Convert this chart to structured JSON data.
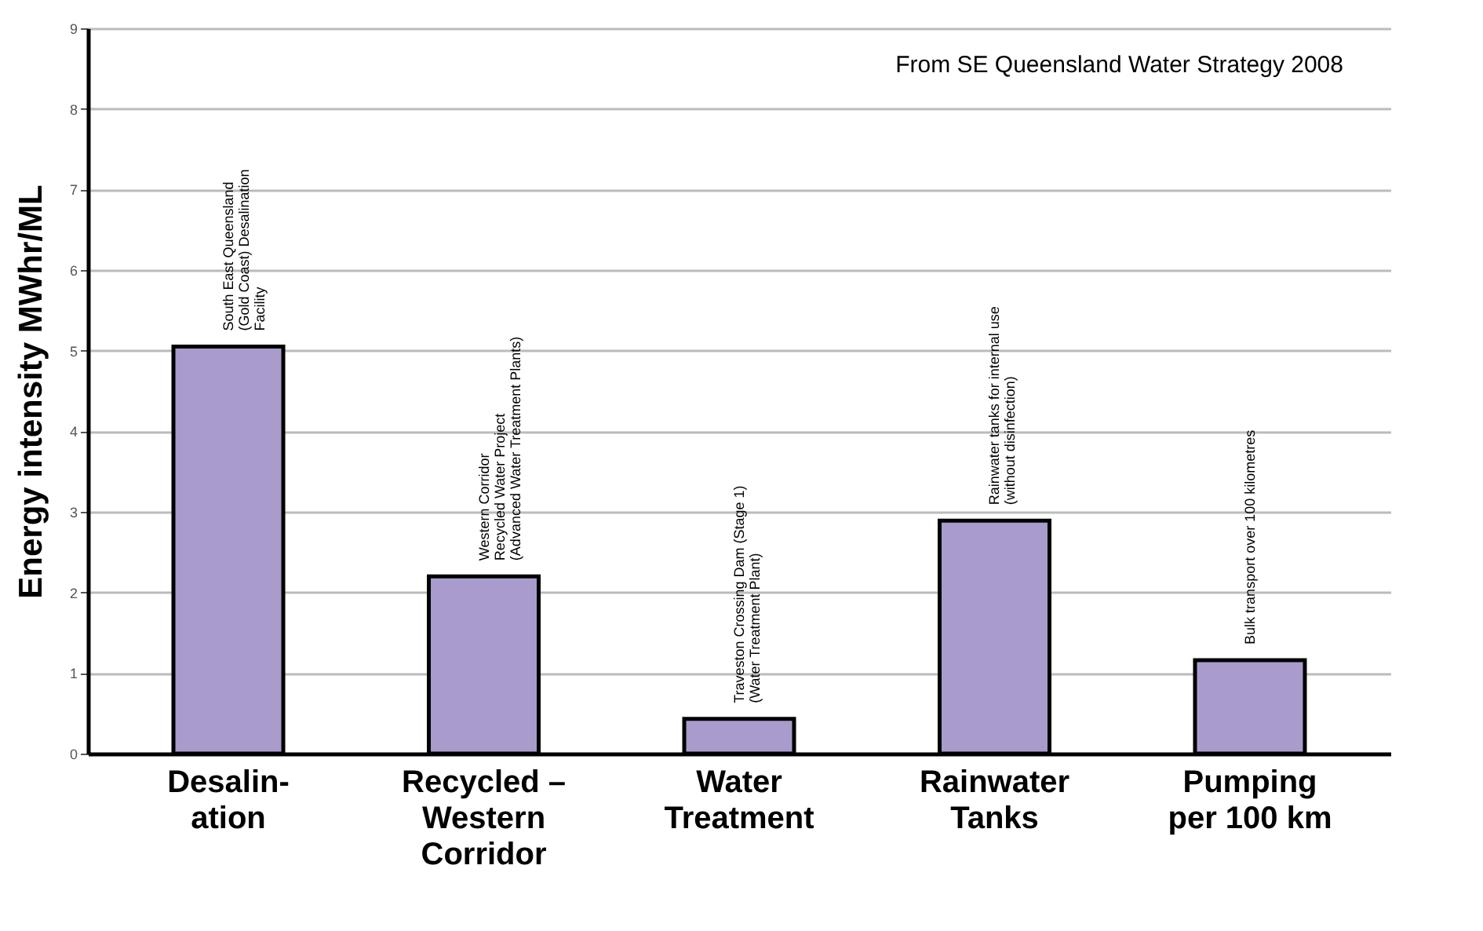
{
  "chart_data": {
    "type": "bar",
    "ylabel": "Energy intensity MWhr/ML",
    "categories": [
      "Desalin-\nation",
      "Recycled –\nWestern\nCorridor",
      "Water\nTreatment",
      "Rainwater\nTanks",
      "Pumping\nper 100 km"
    ],
    "values": [
      5.05,
      2.2,
      0.43,
      2.89,
      1.16
    ],
    "color": "#a99bcb",
    "ylim": [
      0,
      9
    ],
    "yticks": [
      0,
      1,
      2,
      3,
      4,
      5,
      6,
      7,
      8,
      9
    ],
    "grid": "y",
    "annotations": [
      "From SE Queensland Water Strategy 2008",
      {
        "text": "South East Queensland\n(Gold Coast) Desalination\nFacility",
        "x": "Desalin-\nation",
        "y": 5.05
      },
      {
        "text": "Western Corridor\nRecycled Water Project\n(Advanced Water Treatment Plants)",
        "x": "Recycled –\nWestern\nCorridor",
        "y": 2.2
      },
      {
        "text": "Traveston Crossing Dam (Stage 1)\n(Water Treatment Plant)",
        "x": "Water\nTreatment",
        "y": 0.43
      },
      {
        "text": "Rainwater tanks for internal use\n(without disinfection)",
        "x": "Rainwater\nTanks",
        "y": 2.89
      },
      {
        "text": "Bulk transport over 100 kilometres",
        "x": "Pumping\nper 100 km",
        "y": 1.16
      }
    ]
  }
}
